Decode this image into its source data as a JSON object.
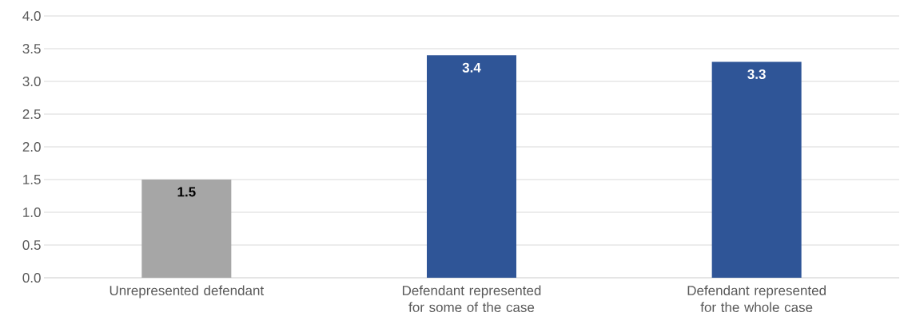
{
  "chart_data": {
    "type": "bar",
    "categories": [
      "Unrepresented defendant",
      "Defendant represented for some of the case",
      "Defendant represented for the whole case"
    ],
    "values": [
      1.5,
      3.4,
      3.3
    ],
    "colors": [
      "#a6a6a6",
      "#2f5597",
      "#2f5597"
    ],
    "ylim": [
      0,
      4
    ],
    "yticks": [
      {
        "value": 0,
        "label": "0.0"
      },
      {
        "value": 0.5,
        "label": "0.5"
      },
      {
        "value": 1,
        "label": "1.0"
      },
      {
        "value": 1.5,
        "label": "1.5"
      },
      {
        "value": 2,
        "label": "2.0"
      },
      {
        "value": 2.5,
        "label": "2.5"
      },
      {
        "value": 3,
        "label": "3.0"
      },
      {
        "value": 3.5,
        "label": "3.5"
      },
      {
        "value": 4,
        "label": "4.0"
      }
    ],
    "grid": "y",
    "data_labels": true
  }
}
